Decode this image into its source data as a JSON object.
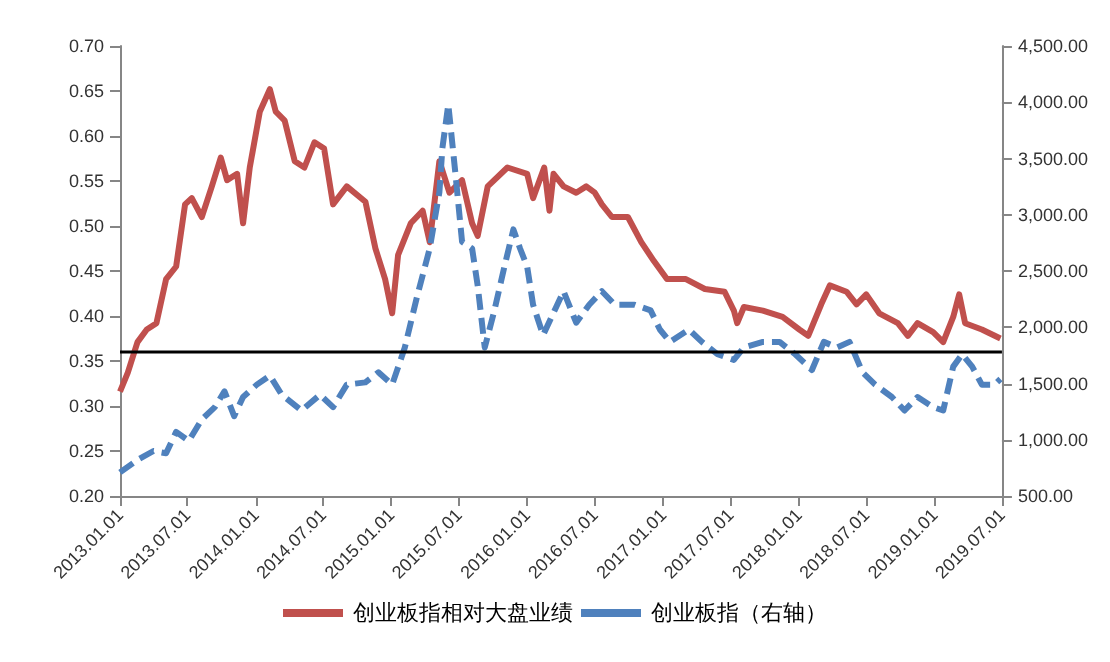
{
  "chart_data": {
    "type": "line",
    "legend": "bottom",
    "grid": false,
    "marker": "none",
    "xlim": [
      "2013-01-01",
      "2019-07-01"
    ],
    "xticks": [
      {
        "value": "2013-01-01",
        "label": "2013.01.01"
      },
      {
        "value": "2013-07-01",
        "label": "2013.07.01"
      },
      {
        "value": "2014-01-01",
        "label": "2014.01.01"
      },
      {
        "value": "2014-07-01",
        "label": "2014.07.01"
      },
      {
        "value": "2015-01-01",
        "label": "2015.01.01"
      },
      {
        "value": "2015-07-01",
        "label": "2015.07.01"
      },
      {
        "value": "2016-01-01",
        "label": "2016.01.01"
      },
      {
        "value": "2016-07-01",
        "label": "2016.07.01"
      },
      {
        "value": "2017-01-01",
        "label": "2017.01.01"
      },
      {
        "value": "2017-07-01",
        "label": "2017.07.01"
      },
      {
        "value": "2018-01-01",
        "label": "2018.01.01"
      },
      {
        "value": "2018-07-01",
        "label": "2018.07.01"
      },
      {
        "value": "2019-01-01",
        "label": "2019.01.01"
      },
      {
        "value": "2019-07-01",
        "label": "2019.07.01"
      }
    ],
    "ylim": [
      0.2,
      0.7
    ],
    "yticks": [
      {
        "value": 0.2,
        "label": "0.20"
      },
      {
        "value": 0.25,
        "label": "0.25"
      },
      {
        "value": 0.3,
        "label": "0.30"
      },
      {
        "value": 0.35,
        "label": "0.35"
      },
      {
        "value": 0.4,
        "label": "0.40"
      },
      {
        "value": 0.45,
        "label": "0.45"
      },
      {
        "value": 0.5,
        "label": "0.50"
      },
      {
        "value": 0.55,
        "label": "0.55"
      },
      {
        "value": 0.6,
        "label": "0.60"
      },
      {
        "value": 0.65,
        "label": "0.65"
      },
      {
        "value": 0.7,
        "label": "0.70"
      }
    ],
    "y2lim": [
      500,
      4500
    ],
    "y2ticks": [
      {
        "value": 500,
        "label": "500.00"
      },
      {
        "value": 1000,
        "label": "1,000.00"
      },
      {
        "value": 1500,
        "label": "1,500.00"
      },
      {
        "value": 2000,
        "label": "2,000.00"
      },
      {
        "value": 2500,
        "label": "2,500.00"
      },
      {
        "value": 3000,
        "label": "3,000.00"
      },
      {
        "value": 3500,
        "label": "3,500.00"
      },
      {
        "value": 4000,
        "label": "4,000.00"
      },
      {
        "value": 4500,
        "label": "4,500.00"
      }
    ],
    "ref_lines": [
      {
        "axis": "y",
        "value": 0.362,
        "color": "#000000",
        "line_style": "solid"
      }
    ],
    "series": [
      {
        "name": "创业板指相对大盘业绩",
        "color": "#c0504d",
        "line_style": "solid",
        "x": [
          "2013-01-01",
          "2013-01-22",
          "2013-02-17",
          "2013-03-14",
          "2013-04-09",
          "2013-05-05",
          "2013-06-01",
          "2013-06-25",
          "2013-07-13",
          "2013-08-09",
          "2013-09-05",
          "2013-09-29",
          "2013-10-16",
          "2013-11-12",
          "2013-11-28",
          "2013-12-16",
          "2014-01-12",
          "2014-02-08",
          "2014-02-24",
          "2014-03-20",
          "2014-04-16",
          "2014-05-12",
          "2014-06-08",
          "2014-07-04",
          "2014-07-28",
          "2014-09-03",
          "2014-10-23",
          "2014-11-19",
          "2014-12-15",
          "2015-01-03",
          "2015-01-19",
          "2015-02-22",
          "2015-03-26",
          "2015-04-14",
          "2015-05-10",
          "2015-06-06",
          "2015-07-10",
          "2015-08-06",
          "2015-08-21",
          "2015-09-17",
          "2015-11-09",
          "2016-01-01",
          "2016-01-17",
          "2016-02-16",
          "2016-03-01",
          "2016-03-12",
          "2016-04-08",
          "2016-05-12",
          "2016-06-08",
          "2016-07-01",
          "2016-07-20",
          "2016-08-16",
          "2016-09-28",
          "2016-11-03",
          "2016-12-07",
          "2017-01-11",
          "2017-03-03",
          "2017-04-23",
          "2017-06-15",
          "2017-07-10",
          "2017-07-19",
          "2017-08-06",
          "2017-09-26",
          "2017-11-18",
          "2018-01-02",
          "2018-01-26",
          "2018-03-02",
          "2018-03-25",
          "2018-05-09",
          "2018-06-05",
          "2018-07-01",
          "2018-08-05",
          "2018-09-24",
          "2018-10-21",
          "2018-11-16",
          "2018-12-28",
          "2019-01-24",
          "2019-02-20",
          "2019-03-08",
          "2019-03-24",
          "2019-05-08",
          "2019-06-27"
        ],
        "values": [
          0.316,
          0.337,
          0.371,
          0.385,
          0.392,
          0.441,
          0.455,
          0.524,
          0.531,
          0.51,
          0.544,
          0.576,
          0.551,
          0.558,
          0.503,
          0.565,
          0.627,
          0.652,
          0.627,
          0.617,
          0.572,
          0.565,
          0.593,
          0.586,
          0.524,
          0.544,
          0.527,
          0.475,
          0.441,
          0.403,
          0.468,
          0.503,
          0.517,
          0.482,
          0.572,
          0.537,
          0.551,
          0.503,
          0.489,
          0.544,
          0.565,
          0.558,
          0.531,
          0.565,
          0.517,
          0.558,
          0.544,
          0.537,
          0.544,
          0.537,
          0.524,
          0.51,
          0.51,
          0.482,
          0.461,
          0.441,
          0.441,
          0.43,
          0.427,
          0.406,
          0.392,
          0.41,
          0.406,
          0.399,
          0.385,
          0.378,
          0.413,
          0.434,
          0.427,
          0.413,
          0.424,
          0.403,
          0.392,
          0.378,
          0.392,
          0.382,
          0.371,
          0.399,
          0.424,
          0.392,
          0.385,
          0.375
        ]
      },
      {
        "name": "创业板指（右轴）",
        "color": "#4f81bd",
        "axis": "y2",
        "line_style": "dashed",
        "x": [
          "2013-01-01",
          "2013-02-17",
          "2013-04-01",
          "2013-05-05",
          "2013-06-01",
          "2013-07-05",
          "2013-08-09",
          "2013-09-13",
          "2013-10-09",
          "2013-11-04",
          "2013-11-28",
          "2014-01-04",
          "2014-02-08",
          "2014-03-12",
          "2014-05-04",
          "2014-06-23",
          "2014-07-28",
          "2014-09-03",
          "2014-10-23",
          "2014-11-27",
          "2015-01-03",
          "2015-02-06",
          "2015-03-10",
          "2015-04-14",
          "2015-05-10",
          "2015-05-18",
          "2015-06-03",
          "2015-06-22",
          "2015-07-10",
          "2015-08-06",
          "2015-08-21",
          "2015-09-09",
          "2015-10-05",
          "2015-11-01",
          "2015-11-25",
          "2015-12-13",
          "2016-01-01",
          "2016-01-17",
          "2016-02-13",
          "2016-04-08",
          "2016-05-12",
          "2016-06-16",
          "2016-07-20",
          "2016-08-24",
          "2016-10-16",
          "2016-11-28",
          "2016-12-23",
          "2017-01-19",
          "2017-03-11",
          "2017-04-15",
          "2017-05-27",
          "2017-07-10",
          "2017-08-06",
          "2017-09-26",
          "2017-11-10",
          "2017-12-22",
          "2018-02-05",
          "2018-03-09",
          "2018-04-13",
          "2018-05-17",
          "2018-06-21",
          "2018-07-25",
          "2018-09-08",
          "2018-10-12",
          "2018-11-16",
          "2018-12-28",
          "2019-01-24",
          "2019-02-20",
          "2019-03-16",
          "2019-04-12",
          "2019-05-08",
          "2019-06-11",
          "2019-06-27"
        ],
        "values": [
          710,
          820,
          900,
          880,
          1070,
          990,
          1180,
          1290,
          1430,
          1210,
          1380,
          1490,
          1570,
          1400,
          1260,
          1400,
          1290,
          1490,
          1510,
          1600,
          1490,
          1820,
          2260,
          2700,
          3200,
          3590,
          3980,
          3370,
          2760,
          2700,
          2370,
          1820,
          2150,
          2540,
          2870,
          2700,
          2540,
          2200,
          1930,
          2320,
          2040,
          2200,
          2320,
          2200,
          2200,
          2150,
          1980,
          1870,
          1980,
          1870,
          1760,
          1710,
          1820,
          1870,
          1870,
          1760,
          1620,
          1870,
          1820,
          1870,
          1600,
          1490,
          1380,
          1260,
          1380,
          1290,
          1260,
          1650,
          1760,
          1650,
          1490,
          1490,
          1540
        ]
      }
    ]
  }
}
